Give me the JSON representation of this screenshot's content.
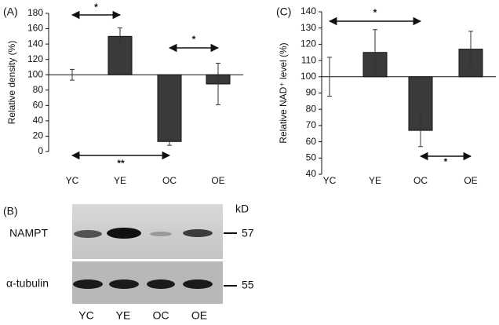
{
  "chart_data": [
    {
      "type": "bar",
      "panel": "(A)",
      "ylabel": "Relative density (%)",
      "categories": [
        "YC",
        "YE",
        "OC",
        "OE"
      ],
      "values": [
        100,
        150,
        13,
        88
      ],
      "errors": [
        7,
        11,
        5,
        27
      ],
      "color": "#3a3a3a",
      "baseline": 100,
      "ylim": [
        0,
        180
      ],
      "yticks": [
        0,
        20,
        40,
        60,
        80,
        100,
        120,
        140,
        160,
        180
      ],
      "annotations": [
        {
          "text": "*",
          "from": "YC",
          "to": "YE"
        },
        {
          "text": "*",
          "from": "OC",
          "to": "OE"
        },
        {
          "text": "**",
          "from": "YC",
          "to": "OC"
        }
      ]
    },
    {
      "type": "bar",
      "panel": "(C)",
      "ylabel": "Relative NAD⁺ level (%)",
      "categories": [
        "YC",
        "YE",
        "OC",
        "OE"
      ],
      "values": [
        100,
        115,
        67,
        117
      ],
      "errors": [
        12,
        14,
        10,
        11
      ],
      "color": "#3a3a3a",
      "baseline": 100,
      "ylim": [
        40,
        140
      ],
      "yticks": [
        40,
        50,
        60,
        70,
        80,
        90,
        100,
        110,
        120,
        130,
        140
      ],
      "annotations": [
        {
          "text": "*",
          "from": "YC",
          "to": "OC"
        },
        {
          "text": "*",
          "from": "OC",
          "to": "OE"
        }
      ]
    }
  ],
  "blot": {
    "panel": "(B)",
    "unit": "kD",
    "rows": [
      {
        "label": "NAMPT",
        "size": "57"
      },
      {
        "label": "α-tubulin",
        "size": "55"
      }
    ],
    "lanes": [
      "YC",
      "YE",
      "OC",
      "OE"
    ]
  }
}
